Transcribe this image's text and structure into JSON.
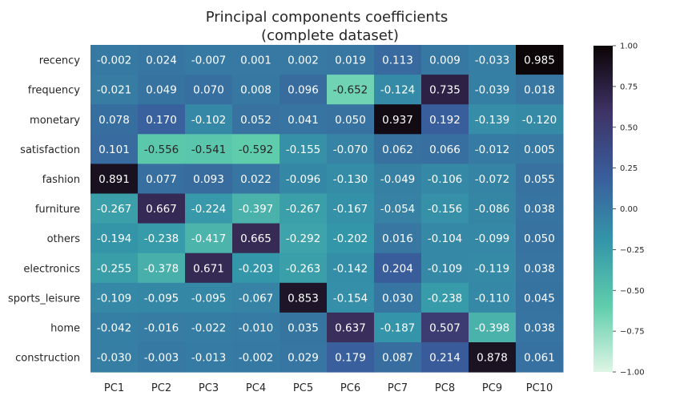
{
  "chart_data": {
    "type": "heatmap",
    "title": "Principal components coefficients",
    "subtitle": "(complete dataset)",
    "columns": [
      "PC1",
      "PC2",
      "PC3",
      "PC4",
      "PC5",
      "PC6",
      "PC7",
      "PC8",
      "PC9",
      "PC10"
    ],
    "rows": [
      "recency",
      "frequency",
      "monetary",
      "satisfaction",
      "fashion",
      "furniture",
      "others",
      "electronics",
      "sports_leisure",
      "home",
      "construction"
    ],
    "values": [
      [
        -0.002,
        0.024,
        -0.007,
        0.001,
        0.002,
        0.019,
        0.113,
        0.009,
        -0.033,
        0.985
      ],
      [
        -0.021,
        0.049,
        0.07,
        0.008,
        0.096,
        -0.652,
        -0.124,
        0.735,
        -0.039,
        0.018
      ],
      [
        0.078,
        0.17,
        -0.102,
        0.052,
        0.041,
        0.05,
        0.937,
        0.192,
        -0.139,
        -0.12
      ],
      [
        0.101,
        -0.556,
        -0.541,
        -0.592,
        -0.155,
        -0.07,
        0.062,
        0.066,
        -0.012,
        0.005
      ],
      [
        0.891,
        0.077,
        0.093,
        0.022,
        -0.096,
        -0.13,
        -0.049,
        -0.106,
        -0.072,
        0.055
      ],
      [
        -0.267,
        0.667,
        -0.224,
        -0.397,
        -0.267,
        -0.167,
        -0.054,
        -0.156,
        -0.086,
        0.038
      ],
      [
        -0.194,
        -0.238,
        -0.417,
        0.665,
        -0.292,
        -0.202,
        0.016,
        -0.104,
        -0.099,
        0.05
      ],
      [
        -0.255,
        -0.378,
        0.671,
        -0.203,
        -0.263,
        -0.142,
        0.204,
        -0.109,
        -0.119,
        0.038
      ],
      [
        -0.109,
        -0.095,
        -0.095,
        -0.067,
        0.853,
        -0.154,
        0.03,
        -0.238,
        -0.11,
        0.045
      ],
      [
        -0.042,
        -0.016,
        -0.022,
        -0.01,
        0.035,
        0.637,
        -0.187,
        0.507,
        -0.398,
        0.038
      ],
      [
        -0.03,
        -0.003,
        -0.013,
        -0.002,
        0.029,
        0.179,
        0.087,
        0.214,
        0.878,
        0.061
      ]
    ],
    "value_labels_format": "%.3f",
    "colorbar": {
      "range": [
        -1.0,
        1.0
      ],
      "ticks": [
        "1.00",
        "0.75",
        "0.50",
        "0.25",
        "0.00",
        "−0.25",
        "−0.50",
        "−0.75",
        "−1.00"
      ],
      "tick_values": [
        1.0,
        0.75,
        0.5,
        0.25,
        0.0,
        -0.25,
        -0.5,
        -0.75,
        -1.0
      ],
      "colormap": "mako_r",
      "colormap_stops": [
        "#def5e5",
        "#60ceac",
        "#3496a9",
        "#395d9c",
        "#3e3265",
        "#0b0405"
      ]
    },
    "xlabel": "",
    "ylabel": ""
  }
}
